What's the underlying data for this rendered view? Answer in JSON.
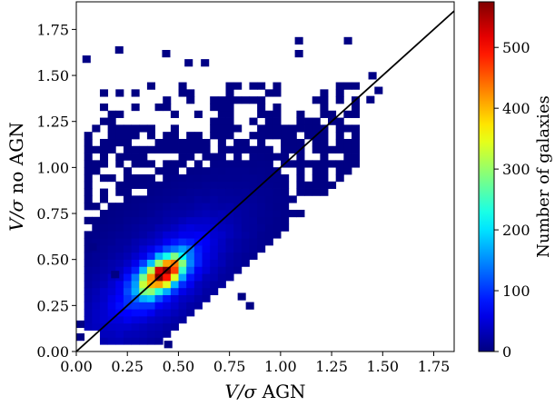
{
  "chart_data": {
    "type": "heatmap",
    "title": "",
    "xlabel_italic": "V/σ",
    "xlabel_rest": " AGN",
    "ylabel_italic": "V/σ",
    "ylabel_rest": " no AGN",
    "xlim": [
      0,
      1.85
    ],
    "ylim": [
      0,
      1.9
    ],
    "xticks": [
      "0.00",
      "0.25",
      "0.50",
      "0.75",
      "1.00",
      "1.25",
      "1.50",
      "1.75"
    ],
    "yticks": [
      "0.00",
      "0.25",
      "0.50",
      "0.75",
      "1.00",
      "1.25",
      "1.50",
      "1.75"
    ],
    "bin_width": 0.0385,
    "colormap": "jet",
    "colorbar": {
      "label": "Number of galaxies",
      "range": [
        0,
        575
      ],
      "ticks": [
        "0",
        "100",
        "200",
        "300",
        "400",
        "500"
      ]
    },
    "density_model": {
      "peak_count": 575,
      "peak_center": [
        0.42,
        0.42
      ],
      "description": "elongated along the one-to-one line; broad low-count envelope up to ~1.45 in both axes"
    },
    "reference_line": {
      "label": "one-to-one",
      "x": [
        0,
        1.85
      ],
      "y": [
        0,
        1.85
      ],
      "color": "#000000"
    },
    "outlier_bins": [
      [
        0.03,
        1.57
      ],
      [
        0.19,
        1.62
      ],
      [
        0.42,
        1.6
      ],
      [
        0.53,
        1.55
      ],
      [
        0.61,
        1.55
      ],
      [
        1.07,
        1.6
      ],
      [
        1.07,
        1.67
      ],
      [
        1.31,
        1.67
      ],
      [
        1.43,
        1.48
      ],
      [
        1.46,
        1.4
      ],
      [
        1.42,
        1.35
      ],
      [
        0.43,
        0.02
      ],
      [
        0.06,
        0.55
      ],
      [
        0.17,
        0.4
      ],
      [
        0.83,
        0.23
      ],
      [
        0.79,
        0.28
      ],
      [
        0.0,
        0.13
      ],
      [
        0.0,
        0.06
      ]
    ]
  }
}
